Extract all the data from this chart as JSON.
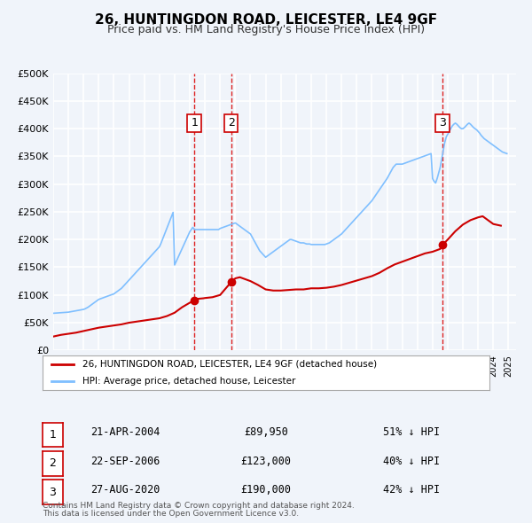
{
  "title": "26, HUNTINGDON ROAD, LEICESTER, LE4 9GF",
  "subtitle": "Price paid vs. HM Land Registry's House Price Index (HPI)",
  "ylabel": "",
  "xlim_start": 1995.0,
  "xlim_end": 2025.5,
  "ylim_min": 0,
  "ylim_max": 500000,
  "background_color": "#f0f4fa",
  "plot_bg_color": "#f0f4fa",
  "grid_color": "#ffffff",
  "red_line_color": "#cc0000",
  "blue_line_color": "#7fbfff",
  "vline_color": "#dd2222",
  "marker_color": "#cc0000",
  "legend_label_red": "26, HUNTINGDON ROAD, LEICESTER, LE4 9GF (detached house)",
  "legend_label_blue": "HPI: Average price, detached house, Leicester",
  "transactions": [
    {
      "num": 1,
      "date_str": "21-APR-2004",
      "year": 2004.3,
      "price": 89950,
      "pct": "51% ↓ HPI"
    },
    {
      "num": 2,
      "date_str": "22-SEP-2006",
      "year": 2006.72,
      "price": 123000,
      "pct": "40% ↓ HPI"
    },
    {
      "num": 3,
      "date_str": "27-AUG-2020",
      "year": 2020.65,
      "price": 190000,
      "pct": "42% ↓ HPI"
    }
  ],
  "footer_line1": "Contains HM Land Registry data © Crown copyright and database right 2024.",
  "footer_line2": "This data is licensed under the Open Government Licence v3.0.",
  "hpi_data": {
    "years": [
      1995.0,
      1995.1,
      1995.2,
      1995.3,
      1995.4,
      1995.5,
      1995.6,
      1995.7,
      1995.8,
      1995.9,
      1996.0,
      1996.1,
      1996.2,
      1996.3,
      1996.4,
      1996.5,
      1996.6,
      1996.7,
      1996.8,
      1996.9,
      1997.0,
      1997.1,
      1997.2,
      1997.3,
      1997.4,
      1997.5,
      1997.6,
      1997.7,
      1997.8,
      1997.9,
      1998.0,
      1998.1,
      1998.2,
      1998.3,
      1998.4,
      1998.5,
      1998.6,
      1998.7,
      1998.8,
      1998.9,
      1999.0,
      1999.1,
      1999.2,
      1999.3,
      1999.4,
      1999.5,
      1999.6,
      1999.7,
      1999.8,
      1999.9,
      2000.0,
      2000.1,
      2000.2,
      2000.3,
      2000.4,
      2000.5,
      2000.6,
      2000.7,
      2000.8,
      2000.9,
      2001.0,
      2001.1,
      2001.2,
      2001.3,
      2001.4,
      2001.5,
      2001.6,
      2001.7,
      2001.8,
      2001.9,
      2002.0,
      2002.1,
      2002.2,
      2002.3,
      2002.4,
      2002.5,
      2002.6,
      2002.7,
      2002.8,
      2002.9,
      2003.0,
      2003.1,
      2003.2,
      2003.3,
      2003.4,
      2003.5,
      2003.6,
      2003.7,
      2003.8,
      2003.9,
      2004.0,
      2004.1,
      2004.2,
      2004.3,
      2004.4,
      2004.5,
      2004.6,
      2004.7,
      2004.8,
      2004.9,
      2005.0,
      2005.1,
      2005.2,
      2005.3,
      2005.4,
      2005.5,
      2005.6,
      2005.7,
      2005.8,
      2005.9,
      2006.0,
      2006.1,
      2006.2,
      2006.3,
      2006.4,
      2006.5,
      2006.6,
      2006.7,
      2006.8,
      2006.9,
      2007.0,
      2007.1,
      2007.2,
      2007.3,
      2007.4,
      2007.5,
      2007.6,
      2007.7,
      2007.8,
      2007.9,
      2008.0,
      2008.1,
      2008.2,
      2008.3,
      2008.4,
      2008.5,
      2008.6,
      2008.7,
      2008.8,
      2008.9,
      2009.0,
      2009.1,
      2009.2,
      2009.3,
      2009.4,
      2009.5,
      2009.6,
      2009.7,
      2009.8,
      2009.9,
      2010.0,
      2010.1,
      2010.2,
      2010.3,
      2010.4,
      2010.5,
      2010.6,
      2010.7,
      2010.8,
      2010.9,
      2011.0,
      2011.1,
      2011.2,
      2011.3,
      2011.4,
      2011.5,
      2011.6,
      2011.7,
      2011.8,
      2011.9,
      2012.0,
      2012.1,
      2012.2,
      2012.3,
      2012.4,
      2012.5,
      2012.6,
      2012.7,
      2012.8,
      2012.9,
      2013.0,
      2013.1,
      2013.2,
      2013.3,
      2013.4,
      2013.5,
      2013.6,
      2013.7,
      2013.8,
      2013.9,
      2014.0,
      2014.1,
      2014.2,
      2014.3,
      2014.4,
      2014.5,
      2014.6,
      2014.7,
      2014.8,
      2014.9,
      2015.0,
      2015.1,
      2015.2,
      2015.3,
      2015.4,
      2015.5,
      2015.6,
      2015.7,
      2015.8,
      2015.9,
      2016.0,
      2016.1,
      2016.2,
      2016.3,
      2016.4,
      2016.5,
      2016.6,
      2016.7,
      2016.8,
      2016.9,
      2017.0,
      2017.1,
      2017.2,
      2017.3,
      2017.4,
      2017.5,
      2017.6,
      2017.7,
      2017.8,
      2017.9,
      2018.0,
      2018.1,
      2018.2,
      2018.3,
      2018.4,
      2018.5,
      2018.6,
      2018.7,
      2018.8,
      2018.9,
      2019.0,
      2019.1,
      2019.2,
      2019.3,
      2019.4,
      2019.5,
      2019.6,
      2019.7,
      2019.8,
      2019.9,
      2020.0,
      2020.1,
      2020.2,
      2020.3,
      2020.4,
      2020.5,
      2020.6,
      2020.7,
      2020.8,
      2020.9,
      2021.0,
      2021.1,
      2021.2,
      2021.3,
      2021.4,
      2021.5,
      2021.6,
      2021.7,
      2021.8,
      2021.9,
      2022.0,
      2022.1,
      2022.2,
      2022.3,
      2022.4,
      2022.5,
      2022.6,
      2022.7,
      2022.8,
      2022.9,
      2023.0,
      2023.1,
      2023.2,
      2023.3,
      2023.4,
      2023.5,
      2023.6,
      2023.7,
      2023.8,
      2023.9,
      2024.0,
      2024.1,
      2024.2,
      2024.3,
      2024.4,
      2024.5,
      2024.6,
      2024.7,
      2024.8,
      2024.9
    ],
    "values": [
      67000,
      67200,
      67400,
      67600,
      67800,
      68000,
      68200,
      68400,
      68600,
      68800,
      69000,
      69500,
      70000,
      70500,
      71000,
      71500,
      72000,
      72500,
      73000,
      73500,
      74000,
      75000,
      76500,
      78000,
      80000,
      82000,
      84000,
      86000,
      88000,
      90000,
      92000,
      93000,
      94000,
      95000,
      96000,
      97000,
      98000,
      99000,
      100000,
      101000,
      102000,
      104000,
      106000,
      108000,
      110000,
      112000,
      115000,
      118000,
      121000,
      124000,
      127000,
      130000,
      133000,
      136000,
      139000,
      142000,
      145000,
      148000,
      151000,
      154000,
      157000,
      160000,
      163000,
      166000,
      169000,
      172000,
      175000,
      178000,
      181000,
      184000,
      187000,
      193000,
      200000,
      207000,
      214000,
      221000,
      228000,
      235000,
      242000,
      249000,
      154000,
      160000,
      166000,
      172000,
      178000,
      184000,
      190000,
      196000,
      202000,
      208000,
      214000,
      218000,
      222000,
      218000,
      218000,
      218000,
      218000,
      218000,
      218000,
      218000,
      218000,
      218000,
      218000,
      218000,
      218000,
      218000,
      218000,
      218000,
      218000,
      218000,
      220000,
      221000,
      222000,
      223000,
      224000,
      225000,
      226000,
      227000,
      228000,
      229000,
      230000,
      228000,
      226000,
      224000,
      222000,
      220000,
      218000,
      216000,
      214000,
      212000,
      210000,
      205000,
      200000,
      195000,
      190000,
      185000,
      180000,
      177000,
      174000,
      171000,
      168000,
      170000,
      172000,
      174000,
      176000,
      178000,
      180000,
      182000,
      184000,
      186000,
      188000,
      190000,
      192000,
      194000,
      196000,
      198000,
      200000,
      200000,
      199000,
      198000,
      197000,
      196000,
      195000,
      194000,
      194000,
      194000,
      193000,
      192000,
      192000,
      192000,
      191000,
      191000,
      191000,
      191000,
      191000,
      191000,
      191000,
      191000,
      191000,
      191000,
      192000,
      193000,
      194000,
      196000,
      198000,
      200000,
      202000,
      204000,
      206000,
      208000,
      210000,
      213000,
      216000,
      219000,
      222000,
      225000,
      228000,
      231000,
      234000,
      237000,
      240000,
      243000,
      246000,
      249000,
      252000,
      255000,
      258000,
      261000,
      264000,
      267000,
      270000,
      274000,
      278000,
      282000,
      286000,
      290000,
      294000,
      298000,
      302000,
      306000,
      310000,
      315000,
      320000,
      325000,
      330000,
      333000,
      336000,
      336000,
      336000,
      336000,
      336000,
      337000,
      338000,
      339000,
      340000,
      341000,
      342000,
      343000,
      344000,
      345000,
      346000,
      347000,
      348000,
      349000,
      350000,
      351000,
      352000,
      353000,
      354000,
      355000,
      310000,
      305000,
      302000,
      310000,
      320000,
      330000,
      345000,
      360000,
      375000,
      385000,
      390000,
      395000,
      400000,
      405000,
      408000,
      410000,
      408000,
      405000,
      402000,
      400000,
      400000,
      402000,
      405000,
      408000,
      410000,
      408000,
      405000,
      402000,
      400000,
      398000,
      395000,
      392000,
      388000,
      385000,
      382000,
      380000,
      378000,
      376000,
      374000,
      372000,
      370000,
      368000,
      366000,
      364000,
      362000,
      360000,
      358000,
      357000,
      356000,
      355000
    ]
  },
  "red_data": {
    "years": [
      1995.0,
      1995.5,
      1996.0,
      1996.5,
      1997.0,
      1997.5,
      1998.0,
      1998.5,
      1999.0,
      1999.5,
      2000.0,
      2000.5,
      2001.0,
      2001.5,
      2002.0,
      2002.5,
      2003.0,
      2003.5,
      2004.0,
      2004.3,
      2004.5,
      2004.9,
      2005.0,
      2005.5,
      2006.0,
      2006.5,
      2006.72,
      2007.0,
      2007.3,
      2007.5,
      2008.0,
      2008.5,
      2009.0,
      2009.5,
      2010.0,
      2010.5,
      2011.0,
      2011.5,
      2012.0,
      2012.5,
      2013.0,
      2013.5,
      2014.0,
      2014.5,
      2015.0,
      2015.5,
      2016.0,
      2016.5,
      2017.0,
      2017.5,
      2018.0,
      2018.5,
      2019.0,
      2019.5,
      2020.0,
      2020.5,
      2020.65,
      2021.0,
      2021.5,
      2022.0,
      2022.5,
      2023.0,
      2023.3,
      2023.5,
      2024.0,
      2024.5
    ],
    "values": [
      25000,
      28000,
      30000,
      32000,
      35000,
      38000,
      41000,
      43000,
      45000,
      47000,
      50000,
      52000,
      54000,
      56000,
      58000,
      62000,
      68000,
      78000,
      86000,
      89950,
      93000,
      94000,
      94500,
      96000,
      100000,
      116000,
      123000,
      130000,
      132000,
      130000,
      125000,
      118000,
      110000,
      108000,
      108000,
      109000,
      110000,
      110000,
      112000,
      112000,
      113000,
      115000,
      118000,
      122000,
      126000,
      130000,
      134000,
      140000,
      148000,
      155000,
      160000,
      165000,
      170000,
      175000,
      178000,
      183000,
      190000,
      200000,
      215000,
      227000,
      235000,
      240000,
      242000,
      238000,
      228000,
      225000
    ]
  }
}
